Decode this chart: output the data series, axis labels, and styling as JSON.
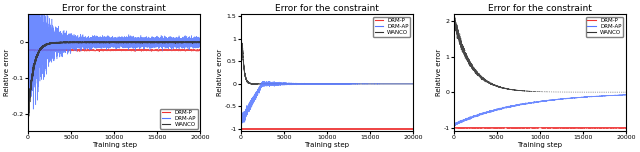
{
  "title": "Error for the constraint",
  "xlabel": "Training step",
  "ylabel": "Relative error",
  "n_steps": 20000,
  "colors": {
    "drm_p": "#ee3333",
    "drm_ap": "#5577ff",
    "wanco": "#333333"
  },
  "subplot1": {
    "ylim": [
      -0.25,
      0.08
    ],
    "yticks": [
      -0.2,
      -0.1,
      0.0
    ],
    "legend_loc": "lower right"
  },
  "subplot2": {
    "ylim": [
      -1.05,
      1.55
    ],
    "yticks": [
      -1.0,
      -0.5,
      0.0,
      0.5,
      1.0,
      1.5
    ],
    "legend_loc": "upper right"
  },
  "subplot3": {
    "ylim": [
      -1.1,
      2.2
    ],
    "yticks": [
      -1.0,
      0.0,
      1.0,
      2.0
    ],
    "legend_loc": "upper right"
  }
}
